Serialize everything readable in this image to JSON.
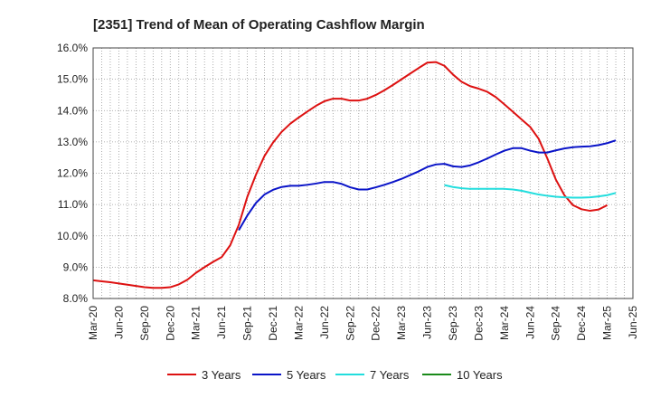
{
  "chart_data": {
    "type": "line",
    "title": "[2351]  Trend of Mean of Operating Cashflow Margin",
    "xlabel": "",
    "ylabel": "",
    "ylim": [
      8.0,
      16.0
    ],
    "y_ticks": [
      "8.0%",
      "9.0%",
      "10.0%",
      "11.0%",
      "12.0%",
      "13.0%",
      "14.0%",
      "15.0%",
      "16.0%"
    ],
    "x_ticks": [
      "Mar-20",
      "Jun-20",
      "Sep-20",
      "Dec-20",
      "Mar-21",
      "Jun-21",
      "Sep-21",
      "Dec-21",
      "Mar-22",
      "Jun-22",
      "Sep-22",
      "Dec-22",
      "Mar-23",
      "Jun-23",
      "Sep-23",
      "Dec-23",
      "Mar-24",
      "Jun-24",
      "Sep-24",
      "Dec-24",
      "Mar-25",
      "Jun-25"
    ],
    "grid": true,
    "legend_position": "bottom",
    "series": [
      {
        "name": "3 Years",
        "color": "#dd1111",
        "points": [
          [
            "Mar-20",
            8.58
          ],
          [
            "Apr-20",
            8.55
          ],
          [
            "May-20",
            8.52
          ],
          [
            "Jun-20",
            8.48
          ],
          [
            "Jul-20",
            8.44
          ],
          [
            "Aug-20",
            8.4
          ],
          [
            "Sep-20",
            8.36
          ],
          [
            "Oct-20",
            8.34
          ],
          [
            "Nov-20",
            8.34
          ],
          [
            "Dec-20",
            8.36
          ],
          [
            "Jan-21",
            8.45
          ],
          [
            "Feb-21",
            8.6
          ],
          [
            "Mar-21",
            8.82
          ],
          [
            "Apr-21",
            9.0
          ],
          [
            "May-21",
            9.17
          ],
          [
            "Jun-21",
            9.32
          ],
          [
            "Jul-21",
            9.7
          ],
          [
            "Aug-21",
            10.35
          ],
          [
            "Sep-21",
            11.25
          ],
          [
            "Oct-21",
            11.95
          ],
          [
            "Nov-21",
            12.55
          ],
          [
            "Dec-21",
            12.98
          ],
          [
            "Jan-22",
            13.32
          ],
          [
            "Feb-22",
            13.58
          ],
          [
            "Mar-22",
            13.78
          ],
          [
            "Apr-22",
            13.97
          ],
          [
            "May-22",
            14.15
          ],
          [
            "Jun-22",
            14.3
          ],
          [
            "Jul-22",
            14.38
          ],
          [
            "Aug-22",
            14.38
          ],
          [
            "Sep-22",
            14.32
          ],
          [
            "Oct-22",
            14.32
          ],
          [
            "Nov-22",
            14.38
          ],
          [
            "Dec-22",
            14.5
          ],
          [
            "Jan-23",
            14.65
          ],
          [
            "Feb-23",
            14.82
          ],
          [
            "Mar-23",
            15.0
          ],
          [
            "Apr-23",
            15.18
          ],
          [
            "May-23",
            15.36
          ],
          [
            "Jun-23",
            15.53
          ],
          [
            "Jul-23",
            15.55
          ],
          [
            "Aug-23",
            15.43
          ],
          [
            "Sep-23",
            15.15
          ],
          [
            "Oct-23",
            14.92
          ],
          [
            "Nov-23",
            14.78
          ],
          [
            "Dec-23",
            14.7
          ],
          [
            "Jan-24",
            14.6
          ],
          [
            "Feb-24",
            14.43
          ],
          [
            "Mar-24",
            14.2
          ],
          [
            "Apr-24",
            13.96
          ],
          [
            "May-24",
            13.72
          ],
          [
            "Jun-24",
            13.48
          ],
          [
            "Jul-24",
            13.1
          ],
          [
            "Aug-24",
            12.48
          ],
          [
            "Sep-24",
            11.8
          ],
          [
            "Oct-24",
            11.3
          ],
          [
            "Nov-24",
            10.98
          ],
          [
            "Dec-24",
            10.85
          ],
          [
            "Jan-25",
            10.8
          ],
          [
            "Feb-25",
            10.84
          ],
          [
            "Mar-25",
            10.98
          ]
        ]
      },
      {
        "name": "5 Years",
        "color": "#0a14c8",
        "points": [
          [
            "Aug-21",
            10.18
          ],
          [
            "Sep-21",
            10.65
          ],
          [
            "Oct-21",
            11.05
          ],
          [
            "Nov-21",
            11.32
          ],
          [
            "Dec-21",
            11.47
          ],
          [
            "Jan-22",
            11.56
          ],
          [
            "Feb-22",
            11.6
          ],
          [
            "Mar-22",
            11.6
          ],
          [
            "Apr-22",
            11.63
          ],
          [
            "May-22",
            11.67
          ],
          [
            "Jun-22",
            11.72
          ],
          [
            "Jul-22",
            11.72
          ],
          [
            "Aug-22",
            11.66
          ],
          [
            "Sep-22",
            11.55
          ],
          [
            "Oct-22",
            11.48
          ],
          [
            "Nov-22",
            11.48
          ],
          [
            "Dec-22",
            11.55
          ],
          [
            "Jan-23",
            11.63
          ],
          [
            "Feb-23",
            11.72
          ],
          [
            "Mar-23",
            11.82
          ],
          [
            "Apr-23",
            11.94
          ],
          [
            "May-23",
            12.06
          ],
          [
            "Jun-23",
            12.2
          ],
          [
            "Jul-23",
            12.28
          ],
          [
            "Aug-23",
            12.3
          ],
          [
            "Sep-23",
            12.22
          ],
          [
            "Oct-23",
            12.2
          ],
          [
            "Nov-23",
            12.25
          ],
          [
            "Dec-23",
            12.35
          ],
          [
            "Jan-24",
            12.47
          ],
          [
            "Feb-24",
            12.6
          ],
          [
            "Mar-24",
            12.72
          ],
          [
            "Apr-24",
            12.8
          ],
          [
            "May-24",
            12.8
          ],
          [
            "Jun-24",
            12.72
          ],
          [
            "Jul-24",
            12.66
          ],
          [
            "Aug-24",
            12.66
          ],
          [
            "Sep-24",
            12.73
          ],
          [
            "Oct-24",
            12.79
          ],
          [
            "Nov-24",
            12.83
          ],
          [
            "Dec-24",
            12.85
          ],
          [
            "Jan-25",
            12.86
          ],
          [
            "Feb-25",
            12.9
          ],
          [
            "Mar-25",
            12.96
          ],
          [
            "Apr-25",
            13.05
          ]
        ]
      },
      {
        "name": "7 Years",
        "color": "#22dddd",
        "points": [
          [
            "Aug-23",
            11.62
          ],
          [
            "Sep-23",
            11.56
          ],
          [
            "Oct-23",
            11.52
          ],
          [
            "Nov-23",
            11.5
          ],
          [
            "Dec-23",
            11.5
          ],
          [
            "Jan-24",
            11.5
          ],
          [
            "Feb-24",
            11.5
          ],
          [
            "Mar-24",
            11.5
          ],
          [
            "Apr-24",
            11.48
          ],
          [
            "May-24",
            11.44
          ],
          [
            "Jun-24",
            11.38
          ],
          [
            "Jul-24",
            11.32
          ],
          [
            "Aug-24",
            11.28
          ],
          [
            "Sep-24",
            11.25
          ],
          [
            "Oct-24",
            11.23
          ],
          [
            "Nov-24",
            11.22
          ],
          [
            "Dec-24",
            11.22
          ],
          [
            "Jan-25",
            11.23
          ],
          [
            "Feb-25",
            11.26
          ],
          [
            "Mar-25",
            11.3
          ],
          [
            "Apr-25",
            11.37
          ]
        ]
      },
      {
        "name": "10 Years",
        "color": "#1a8a1a",
        "points": []
      }
    ]
  }
}
